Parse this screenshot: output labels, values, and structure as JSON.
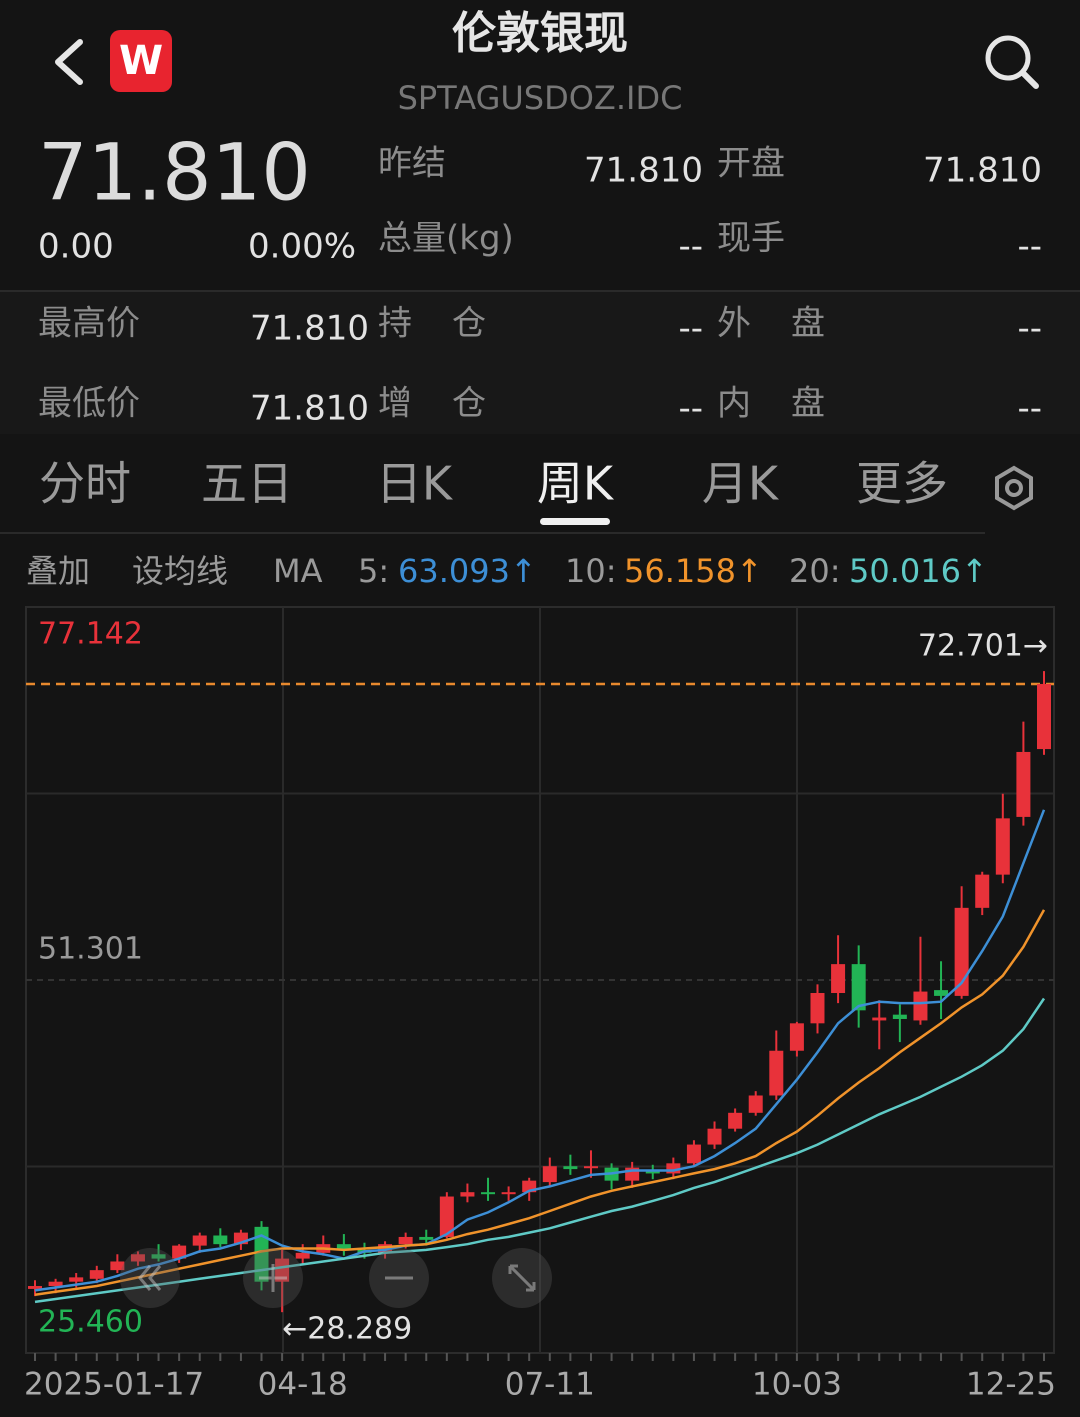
{
  "header": {
    "logo": "W",
    "title": "伦敦银现",
    "subtitle": "SPTAGUSDOZ.IDC"
  },
  "quote": {
    "price": "71.810",
    "change": "0.00",
    "change_pct": "0.00%",
    "fields": [
      {
        "label": "昨结",
        "value": "71.810"
      },
      {
        "label": "开盘",
        "value": "71.810"
      },
      {
        "label": "总量(kg)",
        "value": "--"
      },
      {
        "label": "现手",
        "value": "--"
      }
    ]
  },
  "stats": [
    {
      "label": "最高价",
      "value": "71.810"
    },
    {
      "label": "持仓",
      "value": "--"
    },
    {
      "label": "外盘",
      "value": "--"
    },
    {
      "label": "最低价",
      "value": "71.810"
    },
    {
      "label": "增仓",
      "value": "--"
    },
    {
      "label": "内盘",
      "value": "--"
    }
  ],
  "tabs": [
    "分时",
    "五日",
    "日K",
    "周K",
    "月K",
    "更多"
  ],
  "active_tab": 3,
  "indicator_bar": {
    "overlay": "叠加",
    "set_ma": "设均线",
    "ma": "MA",
    "items": [
      {
        "label": "5:",
        "value": "63.093↑",
        "color": "#3d8fd6"
      },
      {
        "label": "10:",
        "value": "56.158↑",
        "color": "#f0932b"
      },
      {
        "label": "20:",
        "value": "50.016↑",
        "color": "#5fcac6"
      }
    ]
  },
  "chart_data": {
    "type": "candlestick",
    "categories": [
      null,
      "2025-01-17",
      null,
      null,
      null,
      null,
      null,
      null,
      null,
      null,
      null,
      null,
      null,
      "04-18",
      null,
      null,
      null,
      null,
      null,
      null,
      null,
      null,
      null,
      null,
      null,
      "07-11",
      null,
      null,
      null,
      null,
      null,
      null,
      null,
      null,
      null,
      null,
      null,
      "10-03",
      null,
      null,
      null,
      null,
      null,
      null,
      null,
      null,
      null,
      null,
      null,
      "12-25"
    ],
    "candles": [
      [
        29.9,
        30.5,
        29.4,
        30.1
      ],
      [
        30.1,
        30.6,
        29.6,
        30.4
      ],
      [
        30.4,
        31.0,
        30.0,
        30.7
      ],
      [
        30.6,
        31.5,
        30.3,
        31.2
      ],
      [
        31.2,
        32.3,
        31.0,
        31.8
      ],
      [
        31.8,
        32.5,
        31.5,
        32.3
      ],
      [
        32.3,
        33.0,
        31.8,
        32.0
      ],
      [
        32.0,
        33.0,
        31.7,
        32.9
      ],
      [
        32.9,
        33.8,
        32.4,
        33.6
      ],
      [
        33.6,
        34.1,
        32.8,
        33.0
      ],
      [
        33.0,
        34.0,
        32.6,
        33.8
      ],
      [
        34.2,
        34.6,
        29.8,
        30.4
      ],
      [
        30.4,
        32.6,
        28.289,
        32.0
      ],
      [
        32.0,
        33.0,
        31.6,
        32.4
      ],
      [
        32.4,
        33.6,
        32.2,
        33.0
      ],
      [
        33.0,
        33.7,
        32.2,
        32.6
      ],
      [
        32.6,
        33.1,
        32.0,
        32.4
      ],
      [
        32.4,
        33.2,
        32.0,
        33.0
      ],
      [
        33.0,
        33.8,
        32.7,
        33.5
      ],
      [
        33.5,
        34.0,
        32.9,
        33.3
      ],
      [
        33.5,
        36.6,
        33.4,
        36.3
      ],
      [
        36.3,
        37.2,
        35.9,
        36.6
      ],
      [
        36.6,
        37.6,
        36.0,
        36.5
      ],
      [
        36.5,
        37.0,
        36.0,
        36.6
      ],
      [
        36.6,
        37.6,
        36.0,
        37.4
      ],
      [
        37.3,
        39.0,
        37.0,
        38.4
      ],
      [
        38.4,
        39.2,
        37.8,
        38.2
      ],
      [
        38.3,
        39.5,
        37.6,
        38.4
      ],
      [
        38.3,
        38.6,
        36.8,
        37.4
      ],
      [
        37.4,
        38.7,
        36.9,
        38.3
      ],
      [
        38.1,
        38.5,
        37.5,
        37.9
      ],
      [
        37.9,
        39.0,
        37.5,
        38.6
      ],
      [
        38.6,
        40.2,
        38.4,
        39.9
      ],
      [
        39.9,
        41.5,
        39.6,
        41.0
      ],
      [
        41.0,
        42.4,
        40.8,
        42.1
      ],
      [
        42.1,
        43.6,
        41.9,
        43.3
      ],
      [
        43.3,
        47.8,
        43.0,
        46.4
      ],
      [
        46.4,
        48.4,
        46.0,
        48.3
      ],
      [
        48.3,
        51.0,
        47.6,
        50.4
      ],
      [
        50.4,
        54.4,
        49.7,
        52.4
      ],
      [
        52.4,
        53.7,
        48.0,
        49.2
      ],
      [
        48.5,
        49.9,
        46.5,
        48.7
      ],
      [
        48.9,
        49.6,
        47.0,
        48.6
      ],
      [
        48.5,
        54.3,
        48.2,
        50.5
      ],
      [
        50.6,
        52.6,
        48.6,
        50.2
      ],
      [
        50.2,
        57.8,
        50.0,
        56.3
      ],
      [
        56.3,
        58.8,
        55.8,
        58.6
      ],
      [
        58.6,
        64.2,
        58.0,
        62.5
      ],
      [
        62.6,
        69.2,
        62.0,
        67.1
      ],
      [
        67.3,
        72.701,
        66.9,
        71.81
      ]
    ],
    "up_color": "#e8323a",
    "down_color": "#22b455",
    "series": [
      {
        "color": "#3d8fd6",
        "values": [
          29.8,
          30.0,
          30.2,
          30.4,
          30.8,
          31.3,
          31.6,
          32.0,
          32.5,
          32.7,
          33.1,
          33.6,
          32.9,
          32.5,
          32.3,
          32.0,
          32.5,
          32.6,
          32.9,
          33.0,
          33.7,
          34.7,
          35.2,
          35.9,
          36.7,
          37.0,
          37.4,
          37.8,
          37.9,
          38.1,
          38.1,
          38.1,
          38.4,
          39.1,
          40.0,
          41.0,
          42.7,
          44.4,
          46.3,
          48.3,
          49.5,
          49.8,
          49.7,
          49.7,
          49.8,
          51.1,
          53.3,
          55.7,
          59.4,
          63.093
        ]
      },
      {
        "color": "#f0932b",
        "values": [
          29.5,
          29.7,
          29.9,
          30.1,
          30.4,
          30.7,
          31.0,
          31.3,
          31.6,
          31.9,
          32.2,
          32.5,
          32.7,
          32.7,
          32.7,
          32.6,
          32.7,
          32.8,
          32.9,
          33.0,
          33.3,
          33.7,
          34.0,
          34.4,
          34.8,
          35.3,
          35.8,
          36.3,
          36.7,
          37.0,
          37.3,
          37.6,
          37.9,
          38.2,
          38.6,
          39.1,
          40.0,
          40.8,
          41.9,
          43.1,
          44.2,
          45.2,
          46.3,
          47.3,
          48.3,
          49.4,
          50.3,
          51.6,
          53.6,
          56.158
        ]
      },
      {
        "color": "#5fcac6",
        "values": [
          29.0,
          29.2,
          29.4,
          29.6,
          29.8,
          30.0,
          30.2,
          30.4,
          30.6,
          30.8,
          31.0,
          31.2,
          31.4,
          31.6,
          31.8,
          32.0,
          32.2,
          32.4,
          32.5,
          32.6,
          32.8,
          33.0,
          33.3,
          33.5,
          33.8,
          34.1,
          34.5,
          34.9,
          35.3,
          35.6,
          36.0,
          36.4,
          36.9,
          37.3,
          37.8,
          38.3,
          38.8,
          39.3,
          39.9,
          40.6,
          41.3,
          42.0,
          42.6,
          43.2,
          43.9,
          44.6,
          45.4,
          46.4,
          47.9,
          50.016
        ]
      }
    ],
    "ylim": [
      25.46,
      77.142
    ],
    "yticks": [
      {
        "value": 77.142,
        "label": "77.142"
      },
      {
        "value": 51.301,
        "label": "51.301"
      },
      {
        "value": 25.46,
        "label": "25.460"
      }
    ],
    "high_label": {
      "value": 72.701,
      "label": "72.701→"
    },
    "low_label": {
      "value": 28.289,
      "label": "←28.289"
    },
    "last_line_color": "#e8892e",
    "grid": true
  }
}
